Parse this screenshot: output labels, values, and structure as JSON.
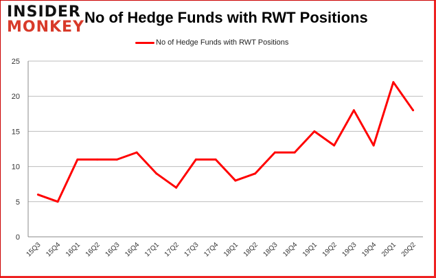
{
  "logo": {
    "line1": "INSIDER",
    "line2": "MONKEY"
  },
  "chart_data": {
    "type": "line",
    "title": "No of Hedge Funds with RWT Positions",
    "xlabel": "",
    "ylabel": "",
    "categories": [
      "15Q3",
      "15Q4",
      "16Q1",
      "16Q2",
      "16Q3",
      "16Q4",
      "17Q1",
      "17Q2",
      "17Q3",
      "17Q4",
      "18Q1",
      "18Q2",
      "18Q3",
      "18Q4",
      "19Q1",
      "19Q2",
      "19Q3",
      "19Q4",
      "20Q1",
      "20Q2"
    ],
    "series": [
      {
        "name": "No of Hedge Funds with RWT Positions",
        "color": "#ff0000",
        "values": [
          6,
          5,
          11,
          11,
          11,
          12,
          9,
          7,
          11,
          11,
          8,
          9,
          12,
          12,
          15,
          13,
          18,
          13,
          22,
          18
        ]
      }
    ],
    "ylim": [
      0,
      25
    ],
    "yticks": [
      0,
      5,
      10,
      15,
      20,
      25
    ],
    "grid": true,
    "legend": "top-center"
  }
}
